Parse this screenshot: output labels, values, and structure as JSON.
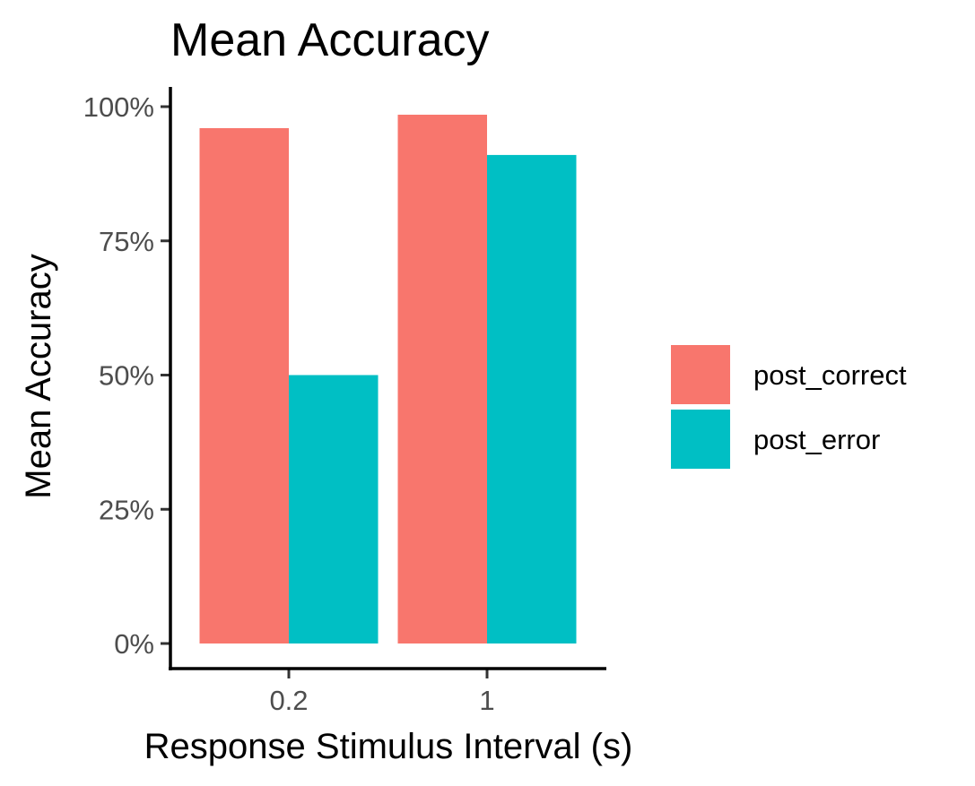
{
  "chart_data": {
    "type": "bar",
    "title": "Mean Accuracy",
    "xlabel": "Response Stimulus Interval (s)",
    "ylabel": "Mean Accuracy",
    "categories": [
      "0.2",
      "1"
    ],
    "series": [
      {
        "name": "post_correct",
        "color": "#F8766D",
        "values": [
          0.96,
          0.985
        ]
      },
      {
        "name": "post_error",
        "color": "#00BFC4",
        "values": [
          0.5,
          0.91
        ]
      }
    ],
    "ylim": [
      0,
      1
    ],
    "yticks": [
      {
        "value": 0,
        "label": "0%"
      },
      {
        "value": 0.25,
        "label": "25%"
      },
      {
        "value": 0.5,
        "label": "50%"
      },
      {
        "value": 0.75,
        "label": "75%"
      },
      {
        "value": 1,
        "label": "100%"
      }
    ],
    "grid": false,
    "legend_position": "right"
  }
}
